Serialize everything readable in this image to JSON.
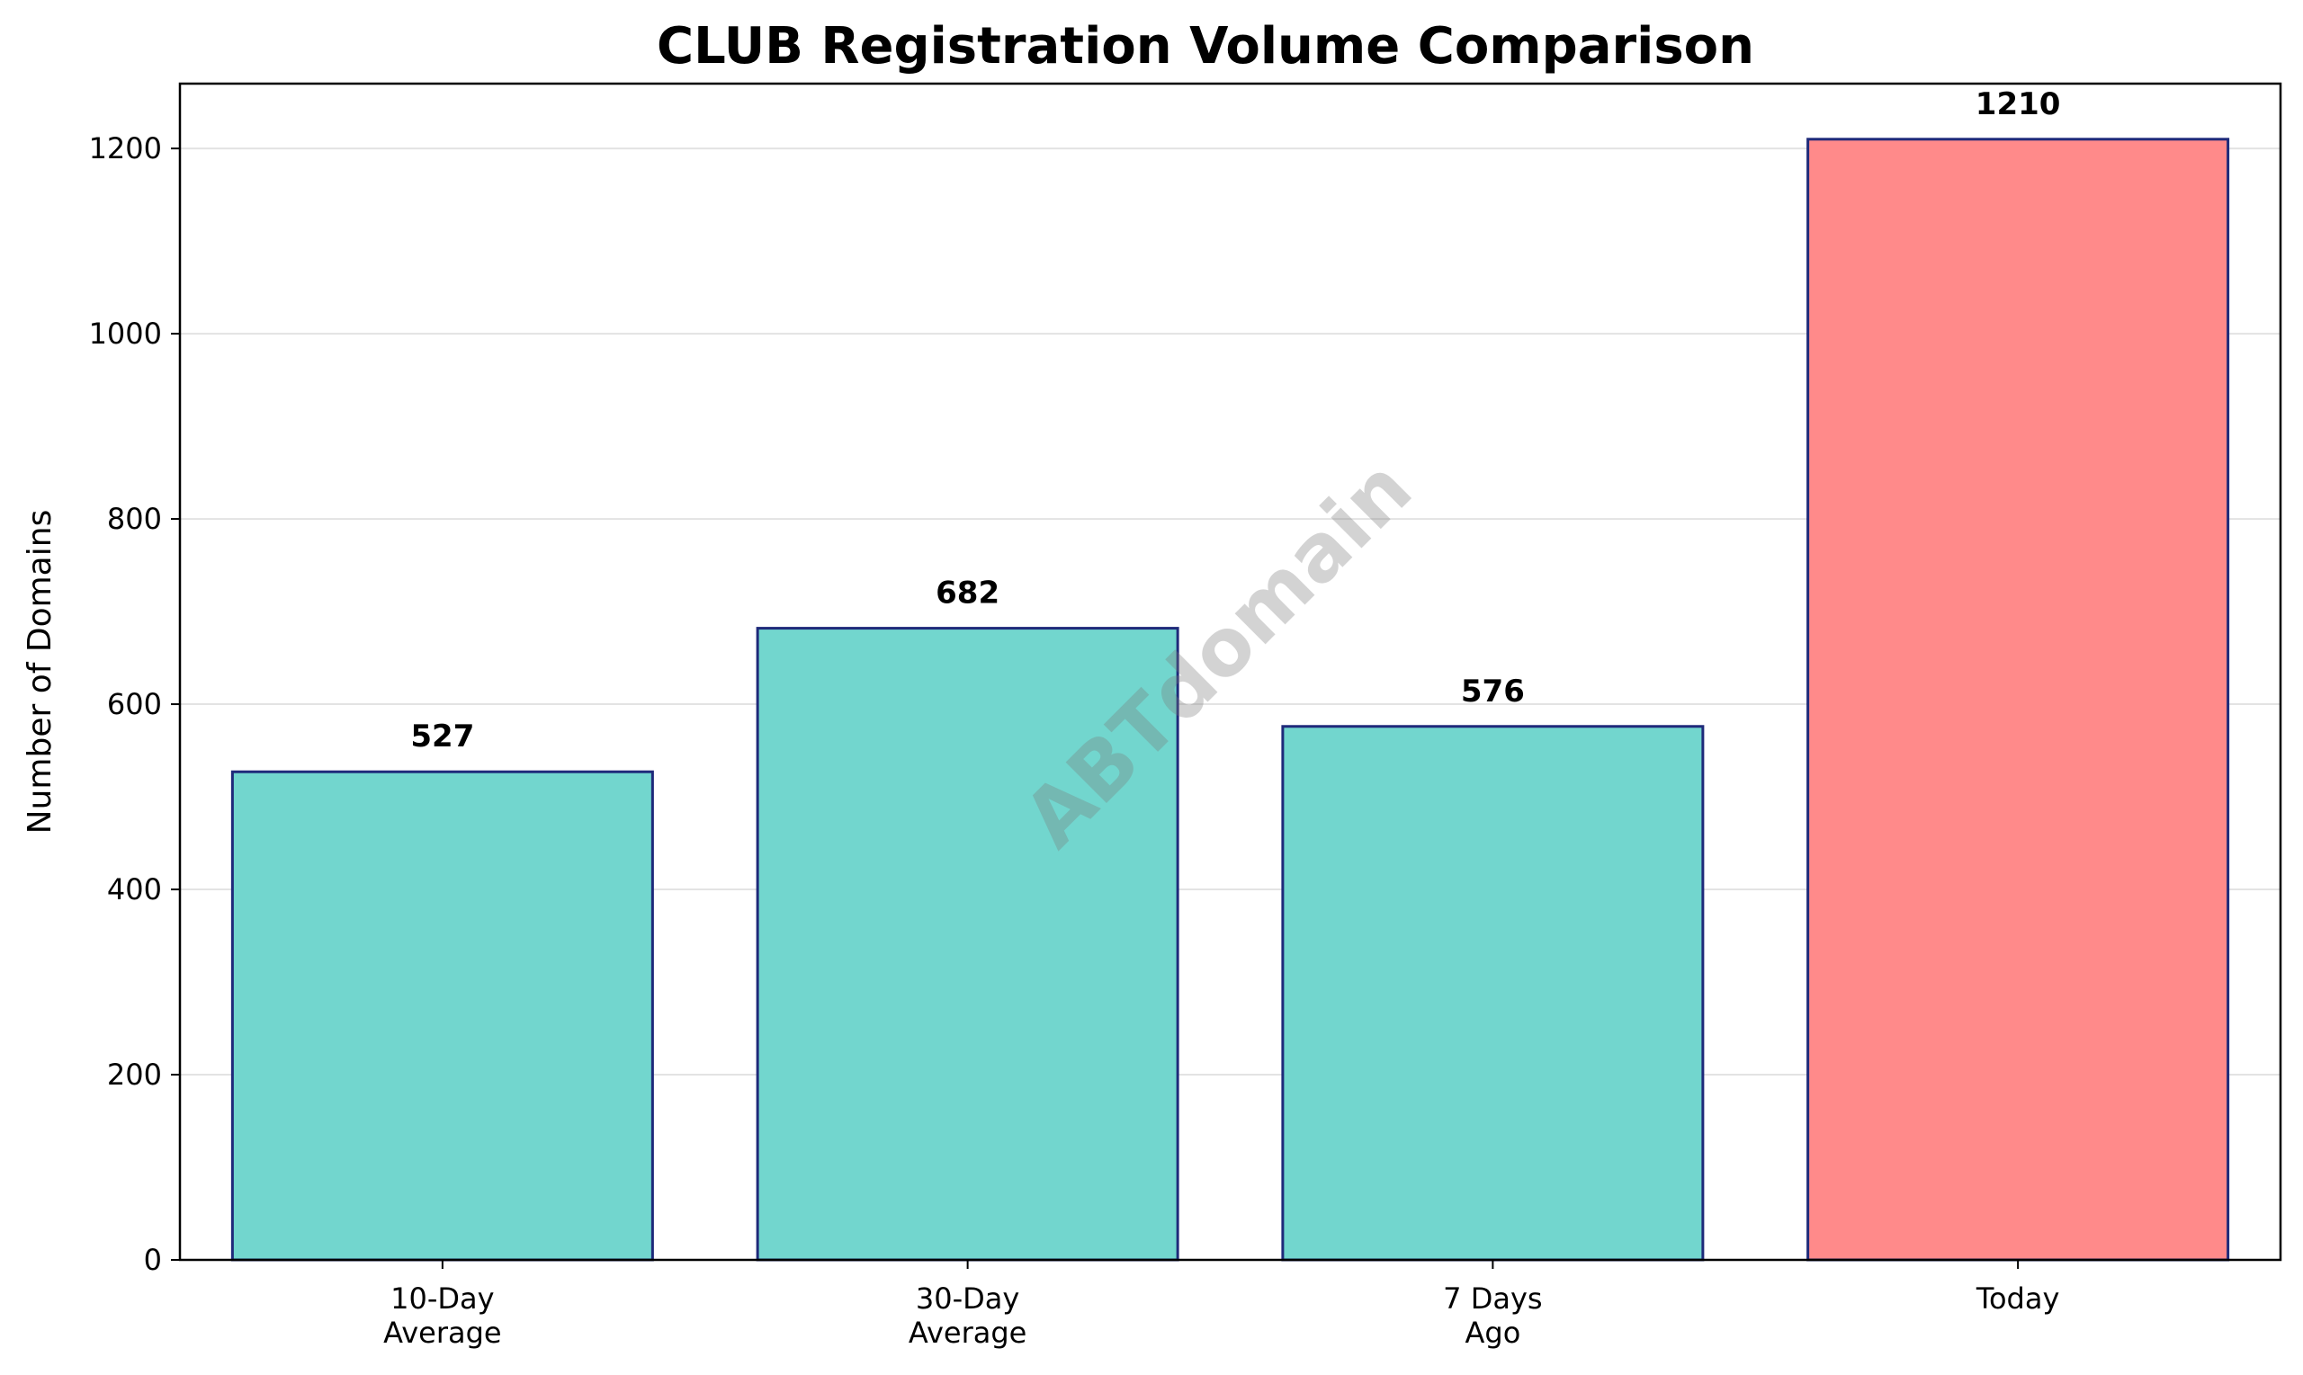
{
  "chart_data": {
    "type": "bar",
    "title": "CLUB Registration Volume Comparison",
    "xlabel": "",
    "ylabel": "Number of Domains",
    "categories": [
      [
        "10-Day",
        "Average"
      ],
      [
        "30-Day",
        "Average"
      ],
      [
        "7 Days",
        "Ago"
      ],
      [
        "Today"
      ]
    ],
    "values": [
      527,
      682,
      576,
      1210
    ],
    "value_labels": [
      "527",
      "682",
      "576",
      "1210"
    ],
    "bar_colors": [
      "#72d6ce",
      "#72d6ce",
      "#72d6ce",
      "#ff8a8a"
    ],
    "bar_edge_color": "#1f2a7a",
    "ylim": [
      0,
      1270
    ],
    "yticks": [
      0,
      200,
      400,
      600,
      800,
      1000,
      1200
    ],
    "grid": "horizontal",
    "watermark": "ABTdomain"
  }
}
